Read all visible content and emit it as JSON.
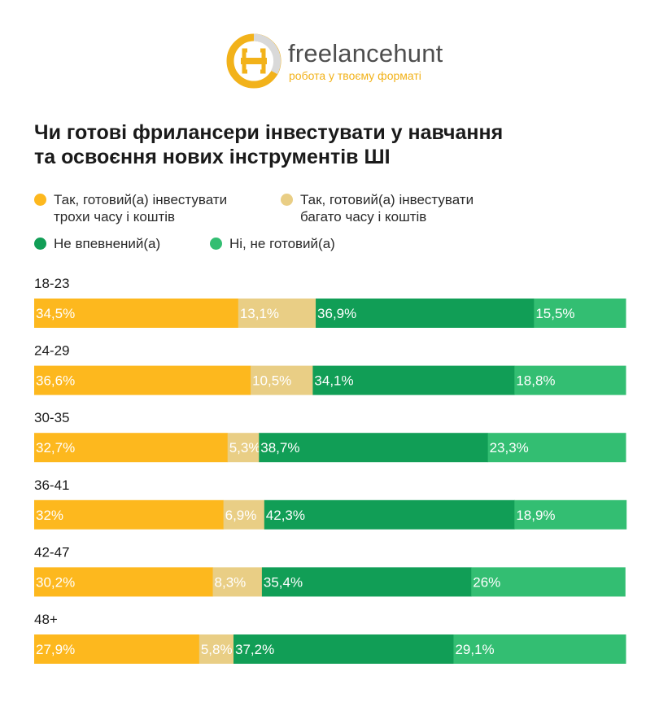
{
  "brand": {
    "name": "freelancehunt",
    "tagline": "робота у твоєму форматі"
  },
  "colors": {
    "yellow": "#FDB81E",
    "beige": "#E9CE85",
    "dark_green": "#119E56",
    "green": "#33BE72",
    "logo_gray": "#4E4E4E"
  },
  "chart_data": {
    "type": "bar",
    "orientation": "horizontal",
    "stacked": true,
    "title": [
      "Чи готові фрилансери інвестувати у навчання",
      "та освоєння нових інструментів ШІ"
    ],
    "xlim": [
      0,
      100
    ],
    "grid": false,
    "legend_position": "top",
    "categories": [
      "18-23",
      "24-29",
      "30-35",
      "36-41",
      "42-47",
      "48+"
    ],
    "series": [
      {
        "name": "Так, готовий(а) інвестувати\nтрохи часу і коштів",
        "color": "#FDB81E",
        "values": [
          34.5,
          36.6,
          32.7,
          32,
          30.2,
          27.9
        ],
        "labels": [
          "34,5%",
          "36,6%",
          "32,7%",
          "32%",
          "30,2%",
          "27,9%"
        ]
      },
      {
        "name": "Так, готовий(а) інвестувати\nбагато часу і коштів",
        "color": "#E9CE85",
        "values": [
          13.1,
          10.5,
          5.3,
          6.9,
          8.3,
          5.8
        ],
        "labels": [
          "13,1%",
          "10,5%",
          "5,3%",
          "6,9%",
          "8,3%",
          "5,8%"
        ]
      },
      {
        "name": "Не впевнений(а)",
        "color": "#119E56",
        "values": [
          36.9,
          34.1,
          38.7,
          42.3,
          35.4,
          37.2
        ],
        "labels": [
          "36,9%",
          "34,1%",
          "38,7%",
          "42,3%",
          "35,4%",
          "37,2%"
        ]
      },
      {
        "name": "Ні, не готовий(а)",
        "color": "#33BE72",
        "values": [
          15.5,
          18.8,
          23.3,
          18.9,
          26,
          29.1
        ],
        "labels": [
          "15,5%",
          "18,8%",
          "23,3%",
          "18,9%",
          "26%",
          "29,1%"
        ]
      }
    ]
  }
}
